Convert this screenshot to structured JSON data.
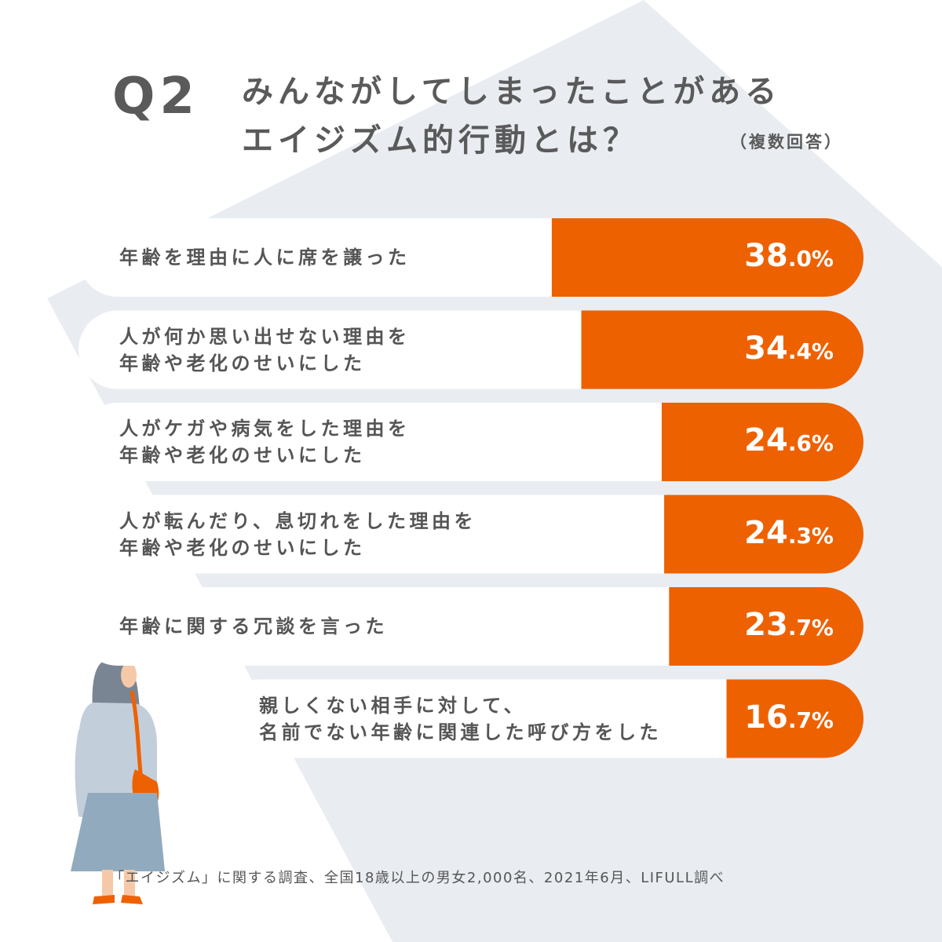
{
  "header": {
    "q_number": "Q2",
    "title_line1": "みんながしてしまったことがある",
    "title_line2": "エイジズム的行動とは？",
    "note": "（複数回答）"
  },
  "colors": {
    "bar": "#ee6100",
    "pill": "#ffffff",
    "background_shape": "#e9edf2",
    "text": "#555555"
  },
  "chart_data": {
    "type": "bar",
    "orientation": "horizontal",
    "unit": "%",
    "xlim": [
      0,
      100
    ],
    "categories": [
      [
        "年齢を理由に人に席を譲った"
      ],
      [
        "人が何か思い出せない理由を",
        "年齢や老化のせいにした"
      ],
      [
        "人がケガや病気をした理由を",
        "年齢や老化のせいにした"
      ],
      [
        "人が転んだり、息切れをした理由を",
        "年齢や老化のせいにした"
      ],
      [
        "年齢に関する冗談を言った"
      ],
      [
        "親しくない相手に対して、",
        "名前でない年齢に関連した呼び方をした"
      ]
    ],
    "values": [
      38.0,
      34.4,
      24.6,
      24.3,
      23.7,
      16.7
    ],
    "value_labels": [
      {
        "int": "38",
        "dec": ".0%"
      },
      {
        "int": "34",
        "dec": ".4%"
      },
      {
        "int": "24",
        "dec": ".6%"
      },
      {
        "int": "24",
        "dec": ".3%"
      },
      {
        "int": "23",
        "dec": ".7%"
      },
      {
        "int": "16",
        "dec": ".7%"
      }
    ]
  },
  "footer": {
    "source": "「エイジズム」に関する調査、全国18歳以上の男女2,000名、2021年6月、LIFULL調べ"
  },
  "illustration": {
    "name": "woman-thinking-illustration"
  }
}
